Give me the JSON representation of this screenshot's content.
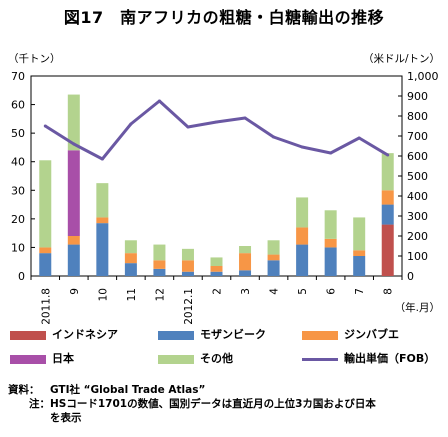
{
  "title": "図17　南アフリカの粗糖・白糖輸出の推移",
  "chart_data": {
    "type": "bar",
    "stacked": true,
    "left_unit": "（千トン）",
    "right_unit": "（米ドル/トン）",
    "x_unit": "（年.月）",
    "categories": [
      "2011.8",
      "9",
      "10",
      "11",
      "12",
      "2012.1",
      "2",
      "3",
      "4",
      "5",
      "6",
      "7",
      "8"
    ],
    "ylim": [
      0,
      70
    ],
    "y_ticks": [
      "0",
      "10",
      "20",
      "30",
      "40",
      "50",
      "60",
      "70"
    ],
    "y2lim": [
      0,
      1000
    ],
    "y2_ticks": [
      "0",
      "100",
      "200",
      "300",
      "400",
      "500",
      "600",
      "700",
      "800",
      "900",
      "1,000"
    ],
    "grid": false,
    "series": [
      {
        "name": "インドネシア",
        "color": "#c0504d",
        "values": [
          0,
          0,
          0,
          0,
          0,
          0,
          0,
          0,
          0,
          0,
          0,
          0,
          18
        ]
      },
      {
        "name": "モザンビーク",
        "color": "#4f81bd",
        "values": [
          8,
          11,
          18.5,
          4.5,
          2.5,
          1.5,
          1.5,
          2,
          5.5,
          11,
          10,
          7,
          7
        ]
      },
      {
        "name": "ジンバブエ",
        "color": "#f79646",
        "values": [
          2,
          3,
          2,
          3.5,
          3,
          4,
          2,
          6,
          2,
          6,
          3,
          2,
          5
        ]
      },
      {
        "name": "日本",
        "color": "#a84fa8",
        "values": [
          0,
          30,
          0,
          0,
          0,
          0,
          0,
          0,
          0,
          0,
          0,
          0,
          0
        ]
      },
      {
        "name": "その他",
        "color": "#b3d38e",
        "values": [
          30.5,
          19.5,
          12,
          4.5,
          5.5,
          4,
          3,
          2.5,
          5,
          10.5,
          10,
          11.5,
          13
        ]
      }
    ],
    "line_series": {
      "name": "輸出単価（FOB）",
      "color": "#6a58a3",
      "axis": "right",
      "values": [
        750,
        660,
        585,
        760,
        875,
        745,
        770,
        790,
        695,
        645,
        615,
        690,
        605
      ]
    }
  },
  "legend_order": [
    {
      "key": "インドネシア",
      "label": "インドネシア",
      "kind": "bar",
      "color": "#c0504d"
    },
    {
      "key": "モザンビーク",
      "label": "モザンビーク",
      "kind": "bar",
      "color": "#4f81bd"
    },
    {
      "key": "ジンバブエ",
      "label": "ジンバブエ",
      "kind": "bar",
      "color": "#f79646"
    },
    {
      "key": "日本",
      "label": "日本",
      "kind": "bar",
      "color": "#a84fa8"
    },
    {
      "key": "その他",
      "label": "その他",
      "kind": "bar",
      "color": "#b3d38e"
    },
    {
      "key": "輸出単価",
      "label": "輸出単価（FOB）",
      "kind": "line",
      "color": "#6a58a3"
    }
  ],
  "notes": {
    "source_label": "資料：",
    "source_text": "GTI社 “Global Trade Atlas”",
    "note_label": "注：",
    "note_text": "HSコード1701の数値、国別データは直近月の上位3カ国および日本を表示"
  }
}
